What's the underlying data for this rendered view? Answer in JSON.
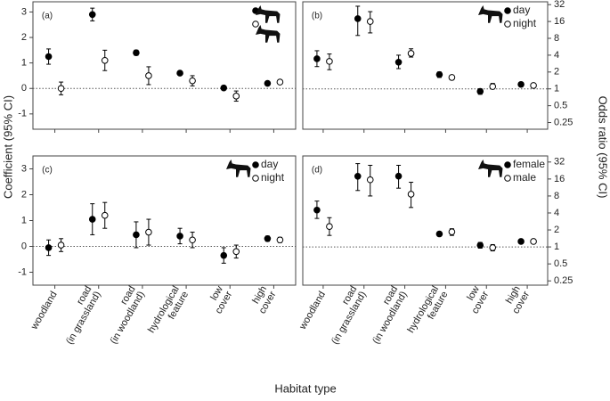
{
  "axis_labels": {
    "xlabel": "Habitat type",
    "ylabel": "Coefficient (95% CI)",
    "y2label": "Odds ratio (95% CI)"
  },
  "chart_data": [
    {
      "type": "errorbar",
      "panel_label": "(a)",
      "log": false,
      "axis_side": "left",
      "legend": "top-right",
      "categories": [
        null,
        null,
        null,
        null,
        null,
        null
      ],
      "ylim": [
        -1.6,
        3.4
      ],
      "yticks": [
        -1,
        0,
        1,
        2,
        3
      ],
      "hline": 0,
      "series": [
        {
          "color": "#000000",
          "marker": "filled",
          "values": [
            1.25,
            2.9,
            1.4,
            0.6,
            0.02,
            0.2
          ],
          "ci_low": [
            0.95,
            2.65,
            1.3,
            0.55,
            -0.02,
            0.15
          ],
          "ci_high": [
            1.55,
            3.15,
            1.5,
            0.65,
            0.06,
            0.25
          ]
        },
        {
          "color": "#000000",
          "marker": "open",
          "values": [
            0.0,
            1.1,
            0.5,
            0.3,
            -0.3,
            0.25
          ],
          "ci_low": [
            -0.25,
            0.7,
            0.15,
            0.1,
            -0.5,
            0.2
          ],
          "ci_high": [
            0.25,
            1.5,
            0.85,
            0.5,
            -0.1,
            0.3
          ]
        }
      ]
    },
    {
      "type": "errorbar",
      "panel_label": "(b)",
      "log": true,
      "axis_side": "right",
      "legend": "top-right",
      "categories": [
        null,
        null,
        null,
        null,
        null,
        null
      ],
      "ylim": [
        0.19,
        36
      ],
      "yticks": [
        0.25,
        0.5,
        1,
        2,
        4,
        8,
        16,
        32
      ],
      "hline": 1,
      "series": [
        {
          "name": "day",
          "color": "#000000",
          "marker": "filled",
          "values": [
            3.45,
            18,
            3,
            1.8,
            0.9,
            1.2
          ],
          "ci_low": [
            2.5,
            9,
            2.3,
            1.6,
            0.8,
            1.1
          ],
          "ci_high": [
            4.8,
            30,
            4,
            2,
            1,
            1.3
          ]
        },
        {
          "name": "night",
          "color": "#000000",
          "marker": "open",
          "values": [
            3.1,
            16,
            4.3,
            1.6,
            1.1,
            1.15
          ],
          "ci_low": [
            2.2,
            10,
            3.7,
            1.45,
            1,
            1.05
          ],
          "ci_high": [
            4.2,
            24,
            5.2,
            1.75,
            1.25,
            1.25
          ]
        }
      ]
    },
    {
      "type": "errorbar",
      "panel_label": "(c)",
      "log": false,
      "axis_side": "left",
      "legend": "top-right",
      "categories": [
        [
          "woodland"
        ],
        [
          "road",
          "(in grassland)"
        ],
        [
          "road",
          "(in woodland)"
        ],
        [
          "hydrological",
          "feature"
        ],
        [
          "low",
          "cover"
        ],
        [
          "high",
          "cover"
        ]
      ],
      "ylim": [
        -1.5,
        3.5
      ],
      "yticks": [
        -1,
        0,
        1,
        2,
        3
      ],
      "hline": 0,
      "series": [
        {
          "name": "day",
          "color": "#000000",
          "marker": "filled",
          "values": [
            -0.05,
            1.05,
            0.45,
            0.4,
            -0.35,
            0.3
          ],
          "ci_low": [
            -0.35,
            0.45,
            -0.05,
            0.1,
            -0.65,
            0.2
          ],
          "ci_high": [
            0.25,
            1.65,
            0.95,
            0.7,
            -0.05,
            0.4
          ]
        },
        {
          "name": "night",
          "color": "#000000",
          "marker": "open",
          "values": [
            0.05,
            1.2,
            0.55,
            0.25,
            -0.2,
            0.25
          ],
          "ci_low": [
            -0.2,
            0.7,
            0.05,
            -0.05,
            -0.45,
            0.15
          ],
          "ci_high": [
            0.3,
            1.7,
            1.05,
            0.55,
            0.05,
            0.35
          ]
        }
      ]
    },
    {
      "type": "errorbar",
      "panel_label": "(d)",
      "log": true,
      "axis_side": "right",
      "legend": "top-right",
      "categories": [
        [
          "woodland"
        ],
        [
          "road",
          "(in grassland)"
        ],
        [
          "road",
          "(in woodland)"
        ],
        [
          "hydrological",
          "feature"
        ],
        [
          "low",
          "cover"
        ],
        [
          "high",
          "cover"
        ]
      ],
      "ylim": [
        0.21,
        41
      ],
      "yticks": [
        0.25,
        0.5,
        1,
        2,
        4,
        8,
        16,
        32
      ],
      "hline": 1,
      "series": [
        {
          "name": "female",
          "color": "#000000",
          "marker": "filled",
          "values": [
            4.5,
            17.9,
            18,
            1.7,
            1.07,
            1.25
          ],
          "ci_low": [
            3.2,
            10,
            11,
            1.6,
            0.95,
            1.15
          ],
          "ci_high": [
            6.5,
            30,
            28,
            1.85,
            1.2,
            1.35
          ]
        },
        {
          "name": "male",
          "color": "#000000",
          "marker": "open",
          "values": [
            2.3,
            15.5,
            8.6,
            1.85,
            0.97,
            1.25
          ],
          "ci_low": [
            1.6,
            8,
            5,
            1.6,
            0.85,
            1.15
          ],
          "ci_high": [
            3.3,
            28,
            14,
            2.1,
            1.1,
            1.35
          ]
        }
      ]
    }
  ]
}
